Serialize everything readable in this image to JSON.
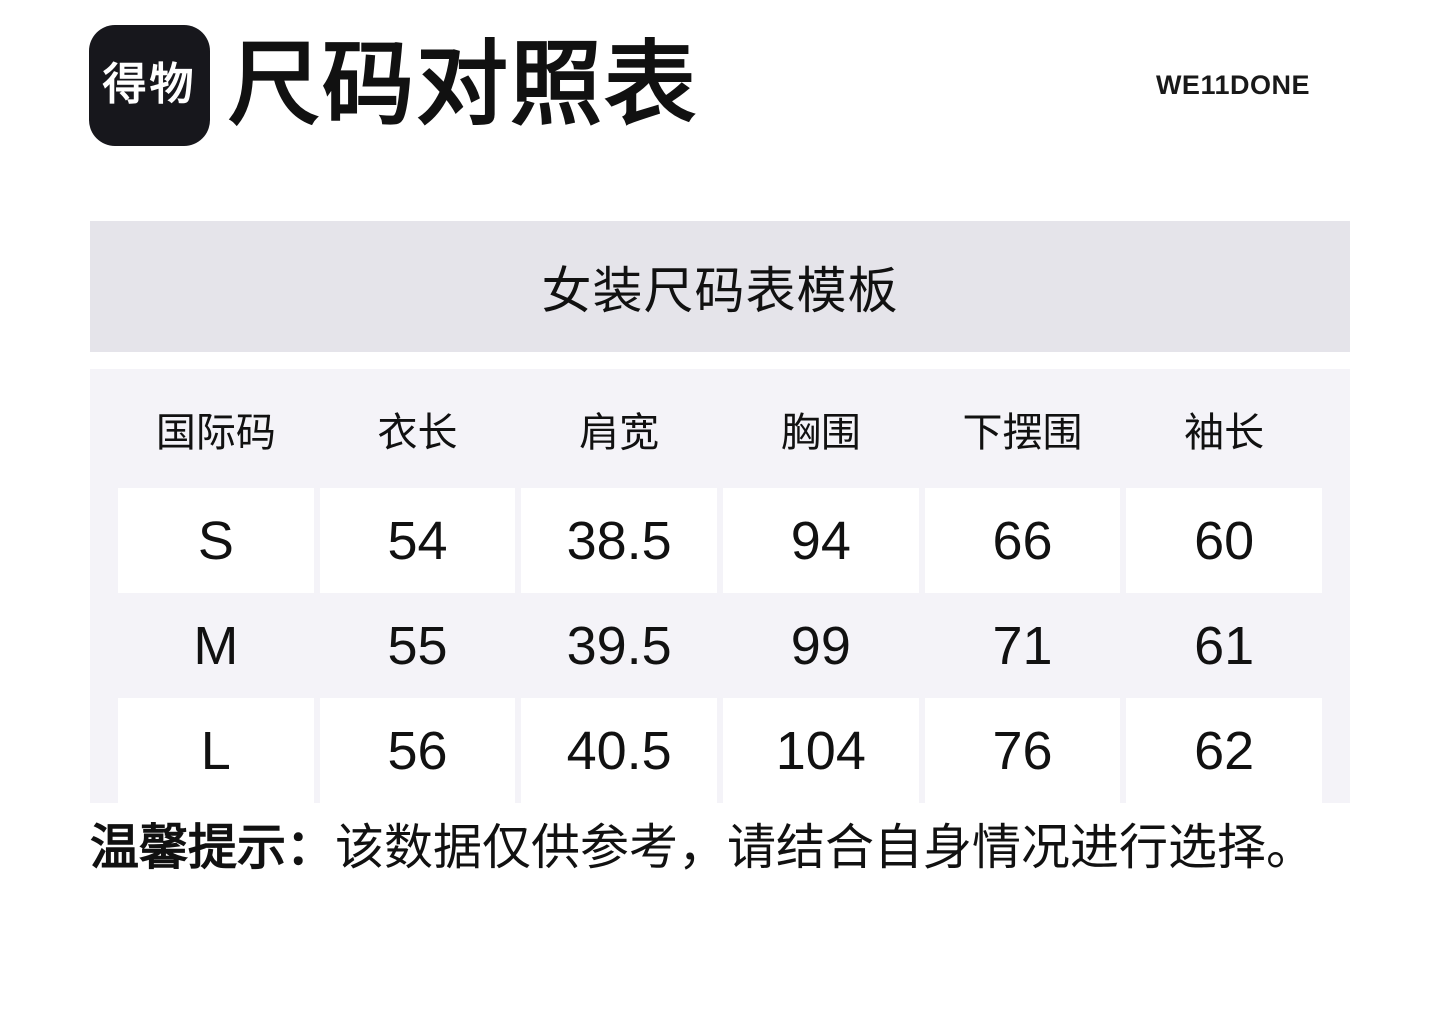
{
  "header": {
    "logo_text": "得物",
    "title": "尺码对照表",
    "brand": "WE11DONE"
  },
  "banner": {
    "title": "女装尺码表模板"
  },
  "table": {
    "headers": [
      "国际码",
      "衣长",
      "肩宽",
      "胸围",
      "下摆围",
      "袖长"
    ],
    "rows": [
      {
        "cells": [
          "S",
          "54",
          "38.5",
          "94",
          "66",
          "60"
        ]
      },
      {
        "cells": [
          "M",
          "55",
          "39.5",
          "99",
          "71",
          "61"
        ]
      },
      {
        "cells": [
          "L",
          "56",
          "40.5",
          "104",
          "76",
          "62"
        ]
      }
    ]
  },
  "footer": {
    "notice_label": "温馨提示：",
    "notice_text": "该数据仅供参考，请结合自身情况进行选择。"
  },
  "colors": {
    "banner_bg": "#e5e4ea",
    "table_bg": "#f4f3f8",
    "cell_bg": "#ffffff",
    "logo_bg": "#17171c",
    "text": "#111111"
  }
}
